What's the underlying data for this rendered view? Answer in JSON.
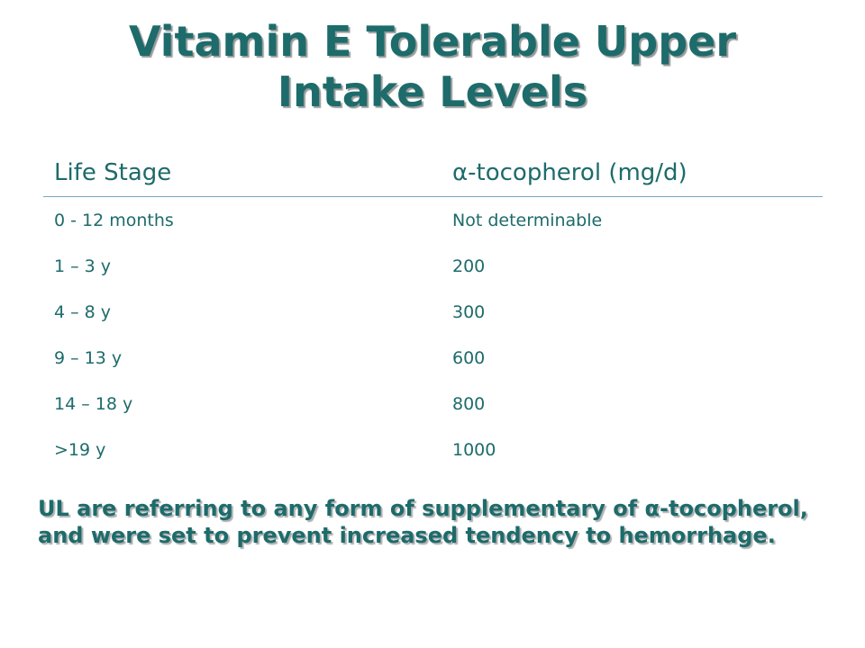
{
  "slide": {
    "title_line1": "Vitamin E Tolerable Upper",
    "title_line2": "Intake Levels",
    "note": "UL are referring to any form of supplementary of α-tocopherol, and were set to prevent increased tendency to hemorrhage."
  },
  "table": {
    "headers": [
      "Life Stage",
      "α-tocopherol (mg/d)"
    ],
    "rows": [
      [
        "0 - 12 months",
        "Not determinable"
      ],
      [
        "1 – 3 y",
        "200"
      ],
      [
        "4 – 8 y",
        "300"
      ],
      [
        "9 – 13 y",
        "600"
      ],
      [
        "14 – 18 y",
        "800"
      ],
      [
        ">19 y",
        "1000"
      ]
    ]
  },
  "colors": {
    "text": "#1d6b6b",
    "rule": "#7aa7c2",
    "background": "#ffffff"
  }
}
